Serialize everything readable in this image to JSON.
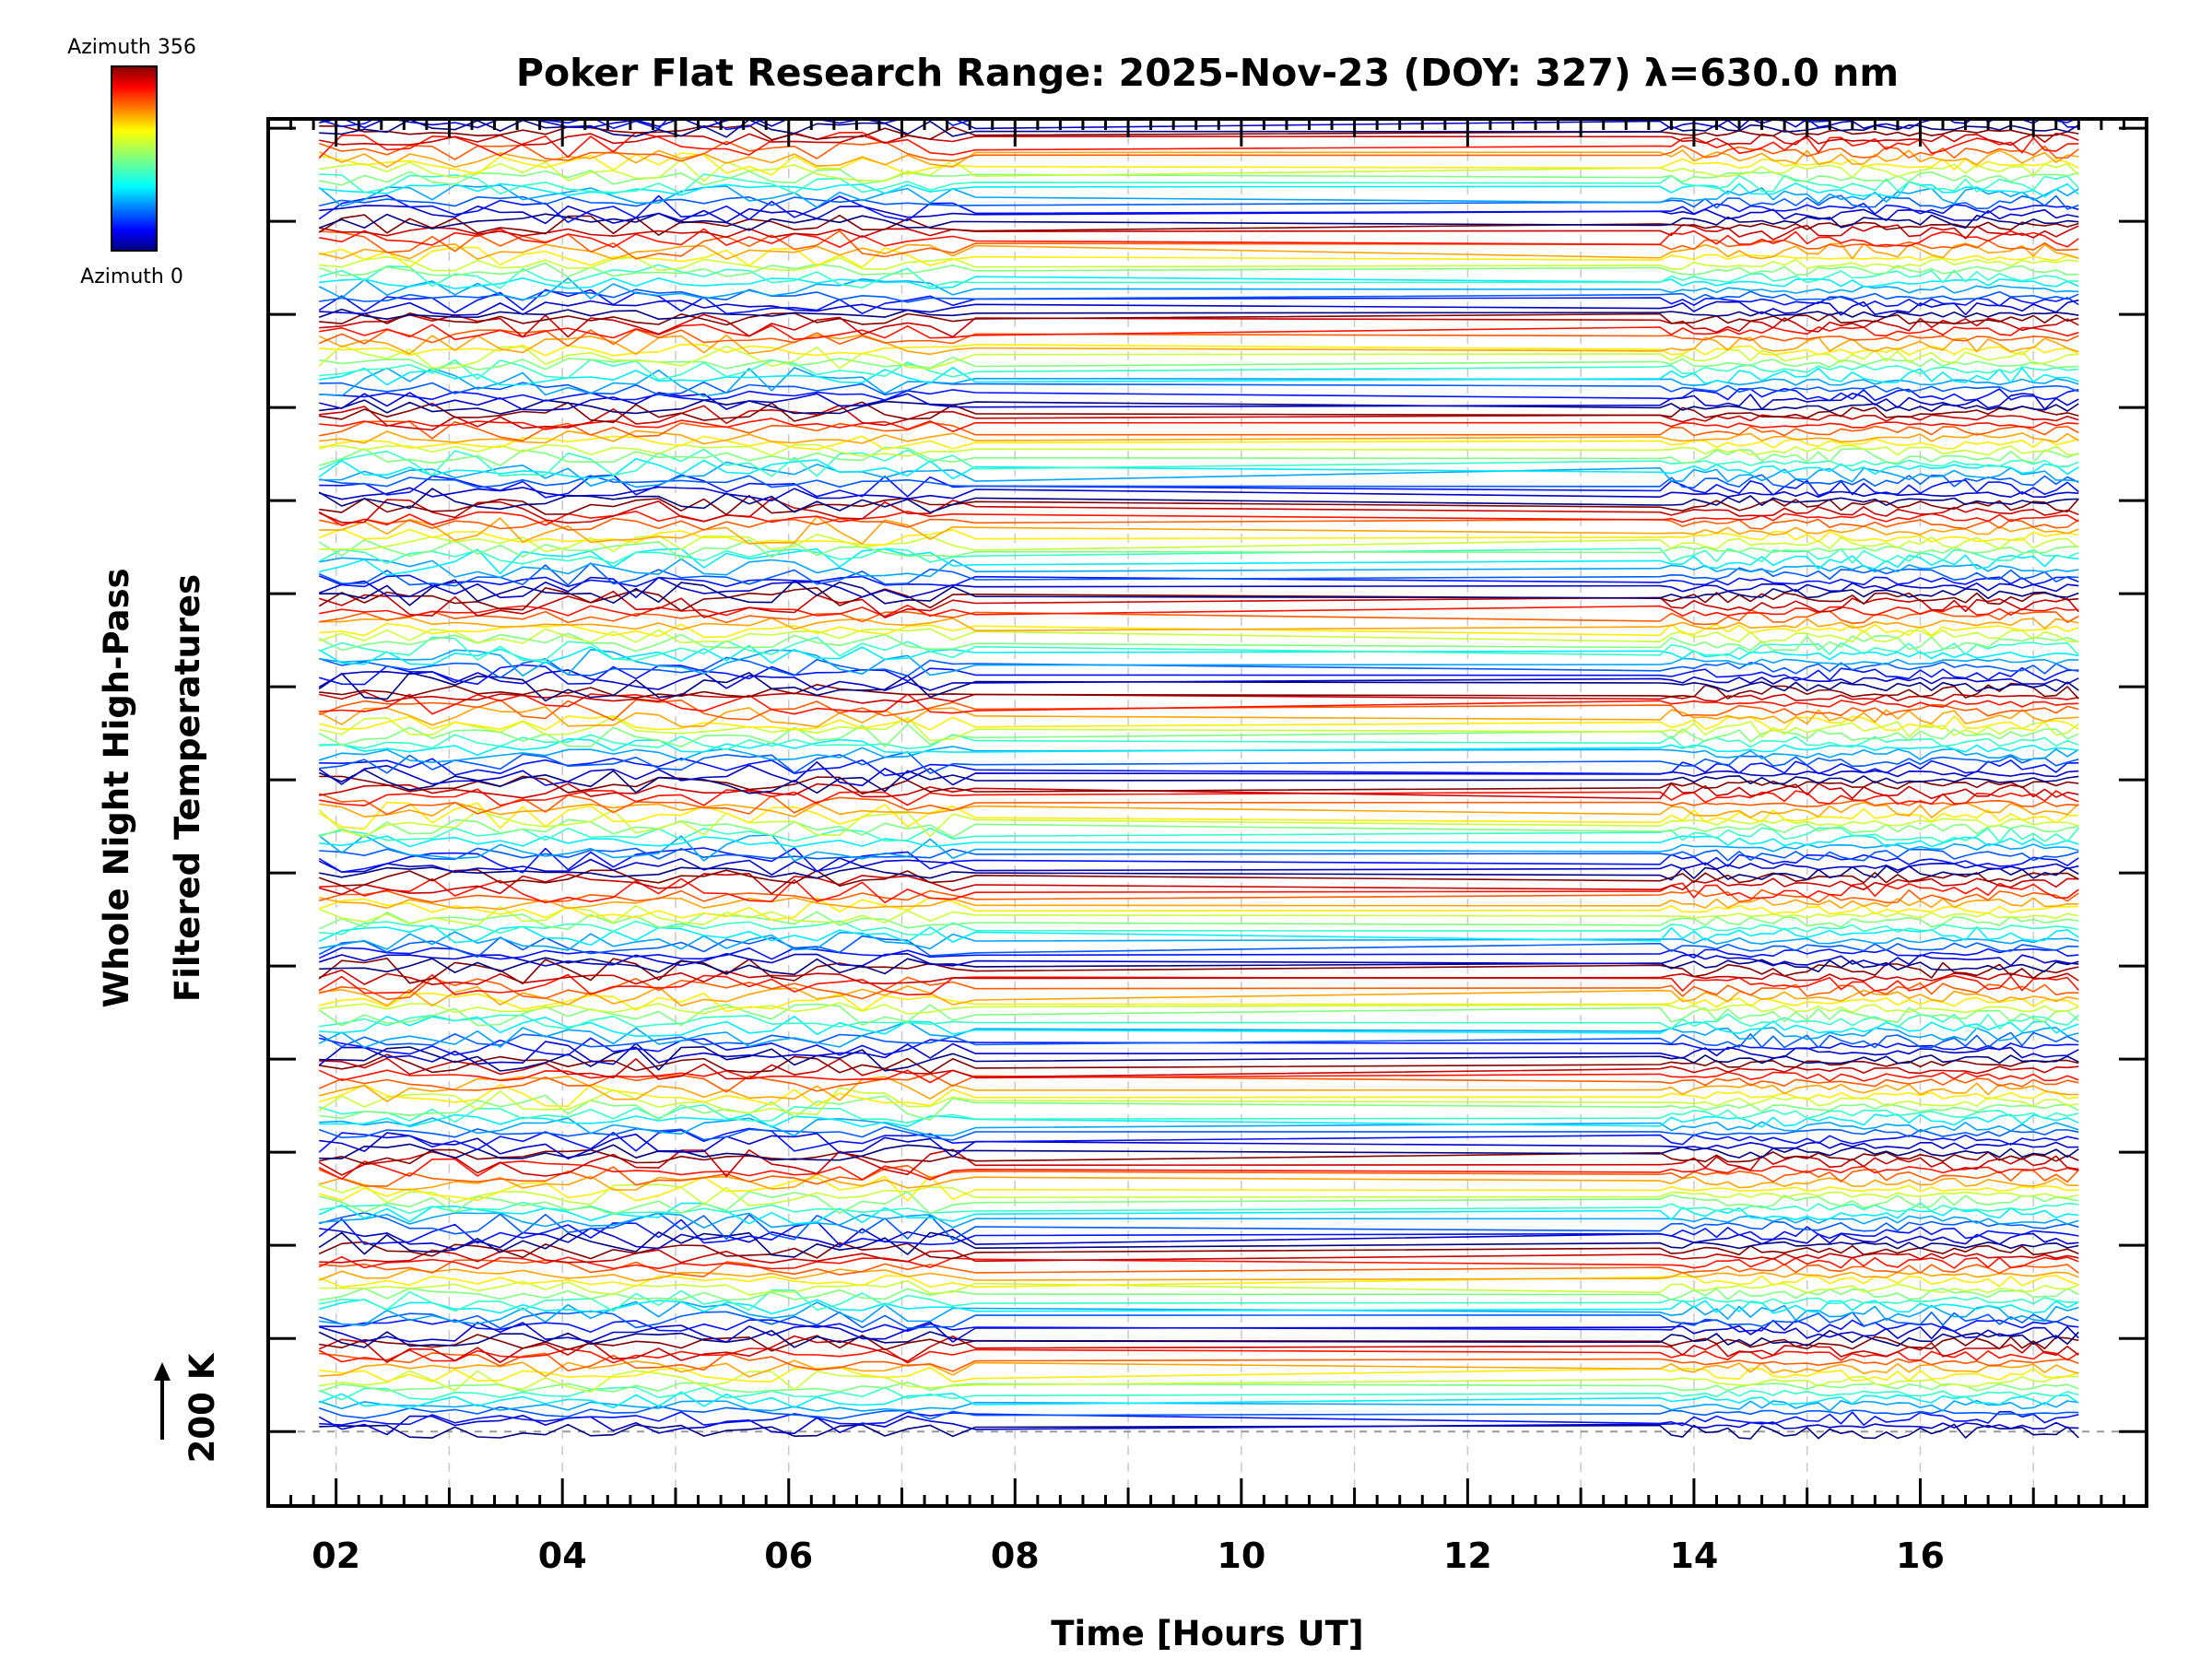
{
  "chart_data": {
    "type": "line",
    "title": "Poker Flat Research Range: 2025-Nov-23 (DOY: 327) λ=630.0 nm",
    "xlabel": "Time [Hours UT]",
    "ylabel_line1": "Whole Night High-Pass",
    "ylabel_line2": "Filtered Temperatures",
    "scale_bar_label": "200 K",
    "scale_bar_value_K": 200,
    "x_tick_labels": [
      "02",
      "04",
      "06",
      "08",
      "10",
      "12",
      "14",
      "16"
    ],
    "x_tick_values": [
      2,
      4,
      6,
      8,
      10,
      12,
      14,
      16
    ],
    "xlim": [
      1.4,
      18.0
    ],
    "ylim_offset_units": [
      -0.8,
      14.1
    ],
    "grid": true,
    "colorbar": {
      "top_label": "Azimuth 356",
      "bottom_label": "Azimuth 0",
      "min_azimuth": 0,
      "max_azimuth": 356,
      "colormap": "jet"
    },
    "data_gap_hours": [
      7.8,
      13.7
    ],
    "observation_start_hours": 1.85,
    "observation_end_hours": 17.45,
    "num_series": 215,
    "series_description": "Stacked high-pass filtered temperature traces, one per azimuth (0–356°), offset vertically by 200 K scale units; linear interpolation across the 07:48–13:42 UT gap"
  },
  "colors": {
    "background": "#ffffff",
    "axes": "#000000",
    "grid": "#c8c8c8"
  }
}
